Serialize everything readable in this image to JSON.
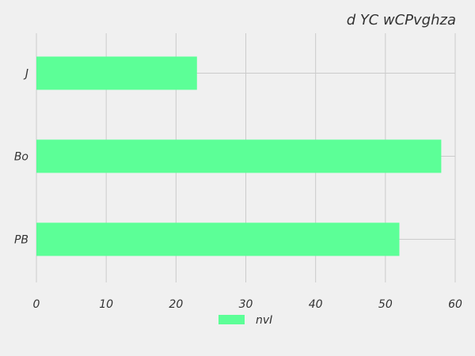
{
  "chart_data": {
    "type": "bar",
    "orientation": "horizontal",
    "title": "d YC wCPvghza",
    "categories": [
      "J",
      "Bo",
      "PB"
    ],
    "series": [
      {
        "name": "nvI",
        "values": [
          23,
          58,
          52
        ]
      }
    ],
    "xlabel": "",
    "ylabel": "",
    "xlim": [
      0,
      60
    ],
    "xticks": [
      0,
      10,
      20,
      30,
      40,
      50,
      60
    ],
    "grid": true,
    "legend_position": "bottom-center",
    "colors": {
      "bar": "#5cff97",
      "grid": "#cbcbcb",
      "background": "#f0f0f0"
    }
  }
}
